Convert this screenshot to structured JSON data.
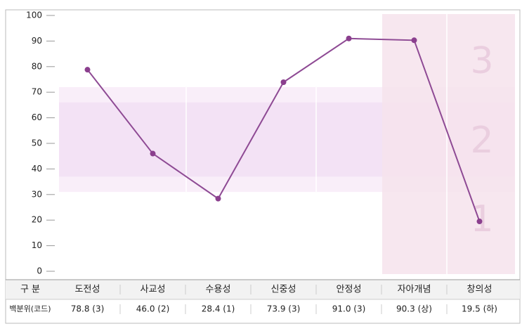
{
  "chart_data": {
    "type": "line",
    "categories": [
      "도전성",
      "사교성",
      "수용성",
      "신중성",
      "안정성",
      "자아개념",
      "창의성"
    ],
    "values": [
      78.8,
      46.0,
      28.4,
      73.9,
      91.0,
      90.3,
      19.5
    ],
    "value_labels": [
      "78.8 (3)",
      "46.0 (2)",
      "28.4 (1)",
      "73.9 (3)",
      "91.0 (3)",
      "90.3 (상)",
      "19.5 (하)"
    ],
    "color": "#8e4a94",
    "ylim": [
      0,
      100
    ],
    "yticks": [
      0,
      10,
      20,
      30,
      40,
      50,
      60,
      70,
      80,
      90,
      100
    ],
    "bands": [
      {
        "from": 31,
        "to": 72
      },
      {
        "from": 37,
        "to": 66
      }
    ],
    "zone_labels": [
      "3",
      "2",
      "1"
    ],
    "table_header": "구 분",
    "table_row_label": "백분위(코드)"
  }
}
